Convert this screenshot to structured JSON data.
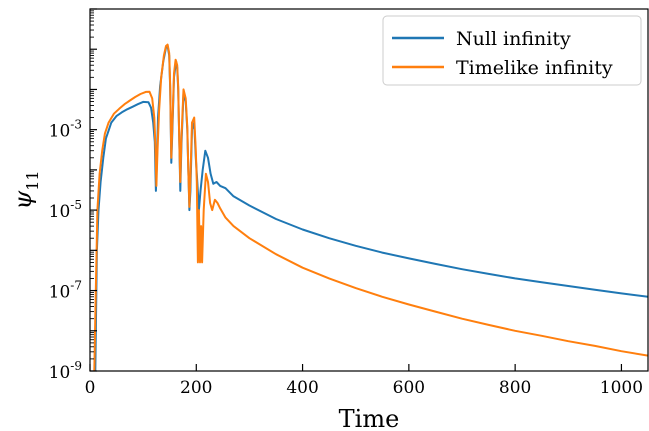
{
  "chart_data": {
    "type": "line",
    "title": "",
    "xlabel": "Time",
    "ylabel": "ψ",
    "ylabel_sub": "11",
    "xlim": [
      0,
      1050
    ],
    "ylim": [
      1e-09,
      1
    ],
    "yscale": "log",
    "grid": false,
    "legend_position": "top-right",
    "x_ticks": [
      {
        "value": 0,
        "label": "0"
      },
      {
        "value": 200,
        "label": "200"
      },
      {
        "value": 400,
        "label": "400"
      },
      {
        "value": 600,
        "label": "600"
      },
      {
        "value": 800,
        "label": "800"
      },
      {
        "value": 1000,
        "label": "1000"
      }
    ],
    "y_ticks": [
      {
        "value": 1e-09,
        "base": "10",
        "exp": "-9"
      },
      {
        "value": 1e-07,
        "base": "10",
        "exp": "-7"
      },
      {
        "value": 1e-05,
        "base": "10",
        "exp": "-5"
      },
      {
        "value": 0.001,
        "base": "10",
        "exp": "-3"
      }
    ],
    "series": [
      {
        "name": "Null infinity",
        "color": "#1f77b4",
        "points": [
          [
            10,
            1e-09
          ],
          [
            13,
            1e-06
          ],
          [
            16,
            1e-05
          ],
          [
            20,
            5e-05
          ],
          [
            25,
            0.0002
          ],
          [
            30,
            0.0006
          ],
          [
            40,
            0.0015
          ],
          [
            50,
            0.0022
          ],
          [
            60,
            0.0027
          ],
          [
            70,
            0.0032
          ],
          [
            80,
            0.0037
          ],
          [
            90,
            0.0043
          ],
          [
            100,
            0.0049
          ],
          [
            110,
            0.0048
          ],
          [
            115,
            0.0035
          ],
          [
            119,
            0.0015
          ],
          [
            122,
            0.0005
          ],
          [
            124,
            3e-05
          ],
          [
            126,
            0.0002
          ],
          [
            128,
            0.002
          ],
          [
            132,
            0.012
          ],
          [
            138,
            0.05
          ],
          [
            143,
            0.11
          ],
          [
            146,
            0.12
          ],
          [
            149,
            0.07
          ],
          [
            151,
            0.01
          ],
          [
            153,
            0.00015
          ],
          [
            155,
            0.001
          ],
          [
            158,
            0.02
          ],
          [
            162,
            0.05
          ],
          [
            164,
            0.035
          ],
          [
            166,
            0.01
          ],
          [
            168,
            0.0005
          ],
          [
            170,
            3e-05
          ],
          [
            172,
            0.0004
          ],
          [
            176,
            0.008
          ],
          [
            180,
            0.005
          ],
          [
            183,
            0.001
          ],
          [
            185,
            0.0001
          ],
          [
            187,
            1e-05
          ],
          [
            189,
            3e-05
          ],
          [
            192,
            0.001
          ],
          [
            196,
            0.0015
          ],
          [
            199,
            0.0002
          ],
          [
            202,
            5e-05
          ],
          [
            205,
            1e-05
          ],
          [
            208,
            3e-05
          ],
          [
            212,
            0.0001
          ],
          [
            217,
            0.0003
          ],
          [
            222,
            0.0002
          ],
          [
            227,
            8e-05
          ],
          [
            232,
            4.5e-05
          ],
          [
            238,
            5e-05
          ],
          [
            245,
            4e-05
          ],
          [
            255,
            3.5e-05
          ],
          [
            270,
            2.2e-05
          ],
          [
            300,
            1.3e-05
          ],
          [
            350,
            6e-06
          ],
          [
            400,
            3.3e-06
          ],
          [
            450,
            2e-06
          ],
          [
            500,
            1.3e-06
          ],
          [
            550,
            8.8e-07
          ],
          [
            600,
            6.3e-07
          ],
          [
            650,
            4.6e-07
          ],
          [
            700,
            3.4e-07
          ],
          [
            750,
            2.6e-07
          ],
          [
            800,
            2e-07
          ],
          [
            850,
            1.6e-07
          ],
          [
            900,
            1.3e-07
          ],
          [
            950,
            1.05e-07
          ],
          [
            1000,
            8.5e-08
          ],
          [
            1050,
            7e-08
          ]
        ]
      },
      {
        "name": "Timelike infinity",
        "color": "#ff7f0e",
        "points": [
          [
            8,
            1e-09
          ],
          [
            11,
            1e-07
          ],
          [
            14,
            1e-05
          ],
          [
            18,
            8e-05
          ],
          [
            23,
            0.0003
          ],
          [
            28,
            0.0008
          ],
          [
            35,
            0.0015
          ],
          [
            45,
            0.0025
          ],
          [
            55,
            0.0033
          ],
          [
            65,
            0.0043
          ],
          [
            75,
            0.0053
          ],
          [
            85,
            0.0065
          ],
          [
            95,
            0.0077
          ],
          [
            105,
            0.0087
          ],
          [
            112,
            0.0088
          ],
          [
            117,
            0.006
          ],
          [
            121,
            0.002
          ],
          [
            123,
            0.0004
          ],
          [
            125,
            4e-05
          ],
          [
            127,
            0.0003
          ],
          [
            130,
            0.003
          ],
          [
            134,
            0.02
          ],
          [
            139,
            0.07
          ],
          [
            143,
            0.12
          ],
          [
            146,
            0.13
          ],
          [
            149,
            0.08
          ],
          [
            151,
            0.012
          ],
          [
            153,
            0.0002
          ],
          [
            155,
            0.0015
          ],
          [
            158,
            0.025
          ],
          [
            161,
            0.055
          ],
          [
            164,
            0.04
          ],
          [
            166,
            0.012
          ],
          [
            168,
            0.0005
          ],
          [
            170,
            5e-05
          ],
          [
            172,
            0.0006
          ],
          [
            176,
            0.01
          ],
          [
            180,
            0.006
          ],
          [
            183,
            0.0012
          ],
          [
            185,
            0.0001
          ],
          [
            187,
            1.2e-05
          ],
          [
            189,
            6e-05
          ],
          [
            192,
            0.0015
          ],
          [
            196,
            0.002
          ],
          [
            199,
            0.0003
          ],
          [
            201,
            5e-05
          ],
          [
            203,
            5e-07
          ],
          [
            205,
            1e-05
          ],
          [
            207,
            5e-07
          ],
          [
            209,
            4e-06
          ],
          [
            211,
            5e-07
          ],
          [
            214,
            1e-05
          ],
          [
            218,
            8e-05
          ],
          [
            222,
            5e-05
          ],
          [
            226,
            1.5e-05
          ],
          [
            230,
            1e-05
          ],
          [
            235,
            1.8e-05
          ],
          [
            240,
            1.5e-05
          ],
          [
            245,
            1.1e-05
          ],
          [
            255,
            6.5e-06
          ],
          [
            270,
            4e-06
          ],
          [
            300,
            2e-06
          ],
          [
            350,
            8e-07
          ],
          [
            400,
            3.7e-07
          ],
          [
            450,
            2e-07
          ],
          [
            500,
            1.15e-07
          ],
          [
            550,
            7e-08
          ],
          [
            600,
            4.5e-08
          ],
          [
            650,
            3e-08
          ],
          [
            700,
            2e-08
          ],
          [
            750,
            1.4e-08
          ],
          [
            800,
            1e-08
          ],
          [
            850,
            7.5e-09
          ],
          [
            900,
            5.5e-09
          ],
          [
            950,
            4.2e-09
          ],
          [
            1000,
            3.1e-09
          ],
          [
            1050,
            2.4e-09
          ]
        ]
      }
    ]
  }
}
